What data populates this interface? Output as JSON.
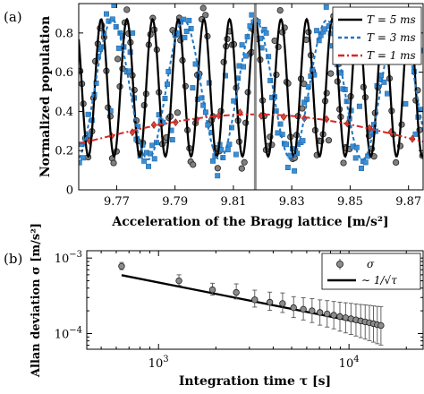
{
  "chart_data": [
    {
      "panel_label": "(a)",
      "type": "line",
      "xlabel": "Acceleration of the Bragg lattice [m/s²]",
      "ylabel": "Normalized population",
      "xlim": [
        9.757,
        9.875
      ],
      "ylim": [
        0,
        0.95
      ],
      "xticks": [
        9.77,
        9.79,
        9.81,
        9.83,
        9.85,
        9.87
      ],
      "xtick_labels": [
        "9.77",
        "9.79",
        "9.81",
        "9.83",
        "9.85",
        "9.87"
      ],
      "yticks": [
        0,
        0.2,
        0.4,
        0.6,
        0.8
      ],
      "ytick_labels": [
        "0",
        "0.2",
        "0.4",
        "0.6",
        "0.8"
      ],
      "vertical_marker": 9.8175,
      "legend_position": "top-right",
      "series": [
        {
          "name": "T = 5 ms",
          "style": "solid",
          "color": "#000000",
          "marker": "circle",
          "marker_color": "#7f7f7f",
          "center": 9.8175,
          "period": 0.0088,
          "mid": 0.52,
          "amp": 0.35
        },
        {
          "name": "T = 3 ms",
          "style": "dashed",
          "color": "#1f77c4",
          "marker": "square",
          "marker_color": "#3a8fd6",
          "center": 9.8175,
          "period": 0.0245,
          "mid": 0.51,
          "amp": 0.355
        },
        {
          "name": "T = 1 ms",
          "style": "dashdot",
          "color": "#d62728",
          "marker": "diamond",
          "marker_color": "#d94a3a",
          "center": 9.8175,
          "period": 0.22,
          "mid": 0.255,
          "amp": 0.13
        }
      ]
    },
    {
      "panel_label": "(b)",
      "type": "scatter",
      "scale": "log-log",
      "xlabel": "Integration time τ [s]",
      "ylabel": "Allan deviation σ [m/s²]",
      "xlim": [
        420,
        24500
      ],
      "ylim": [
        6.2e-05,
        0.00125
      ],
      "xtick_labels": [
        {
          "v": 1000,
          "base": "10",
          "exp": "3"
        },
        {
          "v": 10000,
          "base": "10",
          "exp": "4"
        }
      ],
      "ytick_labels": [
        {
          "v": 0.0001,
          "base": "10",
          "exp": "−4"
        },
        {
          "v": 0.001,
          "base": "10",
          "exp": "−3"
        }
      ],
      "legend_position": "top-right",
      "legend": [
        "σ",
        "∼ 1/√τ"
      ],
      "tau": [
        640,
        1280,
        1920,
        2560,
        3200,
        3840,
        4480,
        5120,
        5760,
        6400,
        7040,
        7680,
        8320,
        8960,
        9600,
        10240,
        10880,
        11520,
        12160,
        12800,
        13440,
        14080,
        14720
      ],
      "sigma": [
        0.00078,
        0.0005,
        0.00038,
        0.00035,
        0.00028,
        0.00026,
        0.00025,
        0.00022,
        0.00021,
        0.0002,
        0.00019,
        0.000182,
        0.000175,
        0.000168,
        0.000162,
        0.000157,
        0.000152,
        0.000147,
        0.000143,
        0.000139,
        0.000135,
        0.000131,
        0.000128
      ],
      "err_factor_upper": [
        1.12,
        1.2,
        1.22,
        1.3,
        1.34,
        1.36,
        1.38,
        1.4,
        1.42,
        1.45,
        1.47,
        1.5,
        1.52,
        1.55,
        1.58,
        1.6,
        1.62,
        1.65,
        1.68,
        1.7,
        1.72,
        1.75,
        1.78
      ],
      "err_factor_lower": [
        0.9,
        0.87,
        0.85,
        0.82,
        0.8,
        0.78,
        0.76,
        0.74,
        0.72,
        0.7,
        0.68,
        0.67,
        0.66,
        0.64,
        0.63,
        0.62,
        0.61,
        0.6,
        0.59,
        0.58,
        0.57,
        0.56,
        0.55
      ],
      "fit": {
        "coefficient": 0.015,
        "exponent": -0.5,
        "x_range": [
          640,
          15000
        ]
      }
    }
  ]
}
